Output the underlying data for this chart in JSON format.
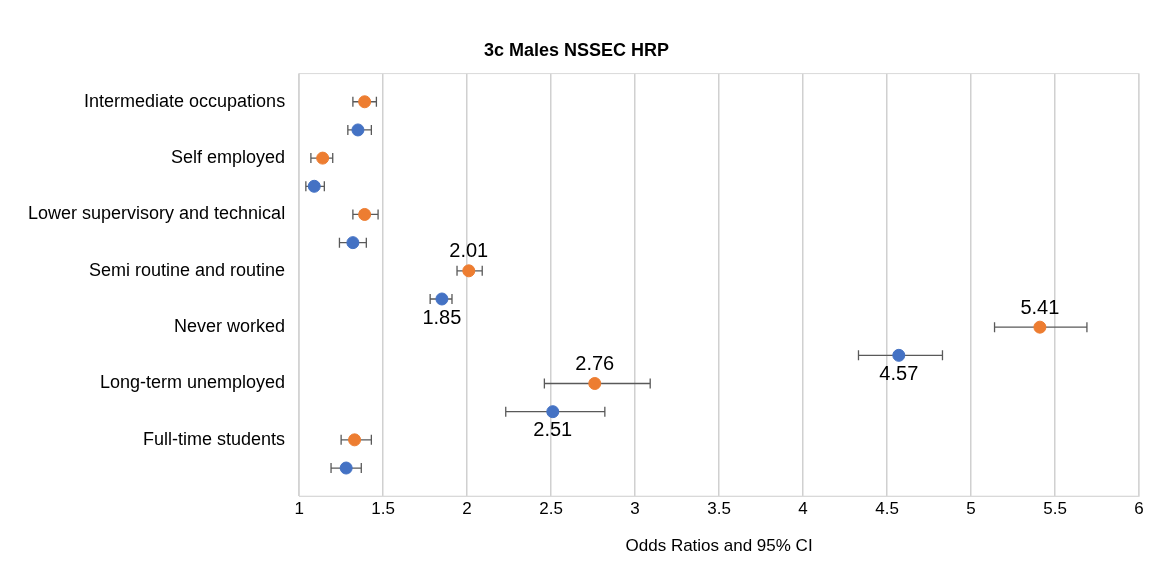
{
  "chart_data": {
    "type": "scatter",
    "orientation": "horizontal",
    "title": "3c Males NSSEC HRP",
    "xlabel": "Odds Ratios and 95% CI",
    "categories": [
      "Intermediate occupations",
      "Self employed",
      "Lower supervisory and technical",
      "Semi routine and routine",
      "Never worked",
      "Long-term unemployed",
      "Full-time students"
    ],
    "series": [
      {
        "color": "#ed7d31",
        "values": [
          1.39,
          1.14,
          1.39,
          2.01,
          5.41,
          2.76,
          1.33
        ],
        "errors": [
          [
            1.32,
            1.46
          ],
          [
            1.07,
            1.2
          ],
          [
            1.32,
            1.47
          ],
          [
            1.94,
            2.09
          ],
          [
            5.14,
            5.69
          ],
          [
            2.46,
            3.09
          ],
          [
            1.25,
            1.43
          ]
        ],
        "value_labels": [
          null,
          null,
          null,
          "2.01",
          "5.41",
          "2.76",
          null
        ]
      },
      {
        "color": "#4472c4",
        "values": [
          1.35,
          1.09,
          1.32,
          1.85,
          4.57,
          2.51,
          1.28
        ],
        "errors": [
          [
            1.29,
            1.43
          ],
          [
            1.04,
            1.15
          ],
          [
            1.24,
            1.4
          ],
          [
            1.78,
            1.91
          ],
          [
            4.33,
            4.83
          ],
          [
            2.23,
            2.82
          ],
          [
            1.19,
            1.37
          ]
        ],
        "value_labels": [
          null,
          null,
          null,
          "1.85",
          "4.57",
          "2.51",
          null
        ]
      }
    ],
    "xlim": [
      1,
      6
    ],
    "xticks": [
      1,
      1.5,
      2,
      2.5,
      3,
      3.5,
      4,
      4.5,
      5,
      5.5,
      6
    ],
    "grid": "x",
    "marker": "circle"
  }
}
